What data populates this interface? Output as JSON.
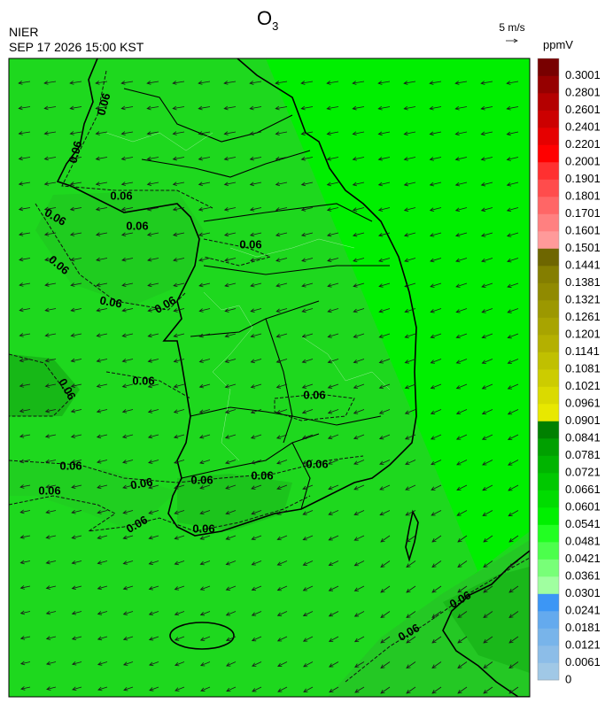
{
  "header": {
    "title": "O",
    "title_subscript": "3",
    "agency": "NIER",
    "datetime": "SEP 17 2026 15:00 KST"
  },
  "wind_reference": "5 m/s",
  "colorbar": {
    "unit": "ppmV",
    "levels": [
      {
        "value": 0,
        "color": "#a0c8e6"
      },
      {
        "value": 0.0061,
        "color": "#8cbde8"
      },
      {
        "value": 0.0121,
        "color": "#78b4ea"
      },
      {
        "value": 0.0181,
        "color": "#64aaee"
      },
      {
        "value": 0.0241,
        "color": "#3c96f5"
      },
      {
        "value": 0.0301,
        "color": "#a0ffa0"
      },
      {
        "value": 0.0361,
        "color": "#78ff78"
      },
      {
        "value": 0.0421,
        "color": "#4cff4c"
      },
      {
        "value": 0.0481,
        "color": "#22ff22"
      },
      {
        "value": 0.0541,
        "color": "#00f000"
      },
      {
        "value": 0.0601,
        "color": "#00dc00"
      },
      {
        "value": 0.0661,
        "color": "#00c800"
      },
      {
        "value": 0.0721,
        "color": "#00b400"
      },
      {
        "value": 0.0781,
        "color": "#00a000"
      },
      {
        "value": 0.0841,
        "color": "#008000"
      },
      {
        "value": 0.0901,
        "color": "#e8e800"
      },
      {
        "value": 0.0961,
        "color": "#dada00"
      },
      {
        "value": 0.1021,
        "color": "#cccc00"
      },
      {
        "value": 0.1081,
        "color": "#c0c000"
      },
      {
        "value": 0.1141,
        "color": "#b4b000"
      },
      {
        "value": 0.1201,
        "color": "#a8a400"
      },
      {
        "value": 0.1261,
        "color": "#9c9800"
      },
      {
        "value": 0.1321,
        "color": "#908a00"
      },
      {
        "value": 0.1381,
        "color": "#847e00"
      },
      {
        "value": 0.1441,
        "color": "#6e6600"
      },
      {
        "value": 0.1501,
        "color": "#ff9a9a"
      },
      {
        "value": 0.1601,
        "color": "#ff8080"
      },
      {
        "value": 0.1701,
        "color": "#ff6666"
      },
      {
        "value": 0.1801,
        "color": "#ff4c4c"
      },
      {
        "value": 0.1901,
        "color": "#ff3030"
      },
      {
        "value": 0.2001,
        "color": "#ff0000"
      },
      {
        "value": 0.2201,
        "color": "#e60000"
      },
      {
        "value": 0.2401,
        "color": "#cc0000"
      },
      {
        "value": 0.2601,
        "color": "#b40000"
      },
      {
        "value": 0.2801,
        "color": "#960000"
      },
      {
        "value": 0.3001,
        "color": "#780000"
      }
    ]
  },
  "contour_labels": [
    "0.06",
    "0.06",
    "0.06",
    "0.06",
    "0.06",
    "0.06",
    "0.06",
    "0.06",
    "0.06",
    "0.06",
    "0.06",
    "0.06",
    "0.06",
    "0.06",
    "0.06",
    "0.06",
    "0.06",
    "0.06",
    "0.06",
    "0.06",
    "0.06",
    "0.06"
  ]
}
